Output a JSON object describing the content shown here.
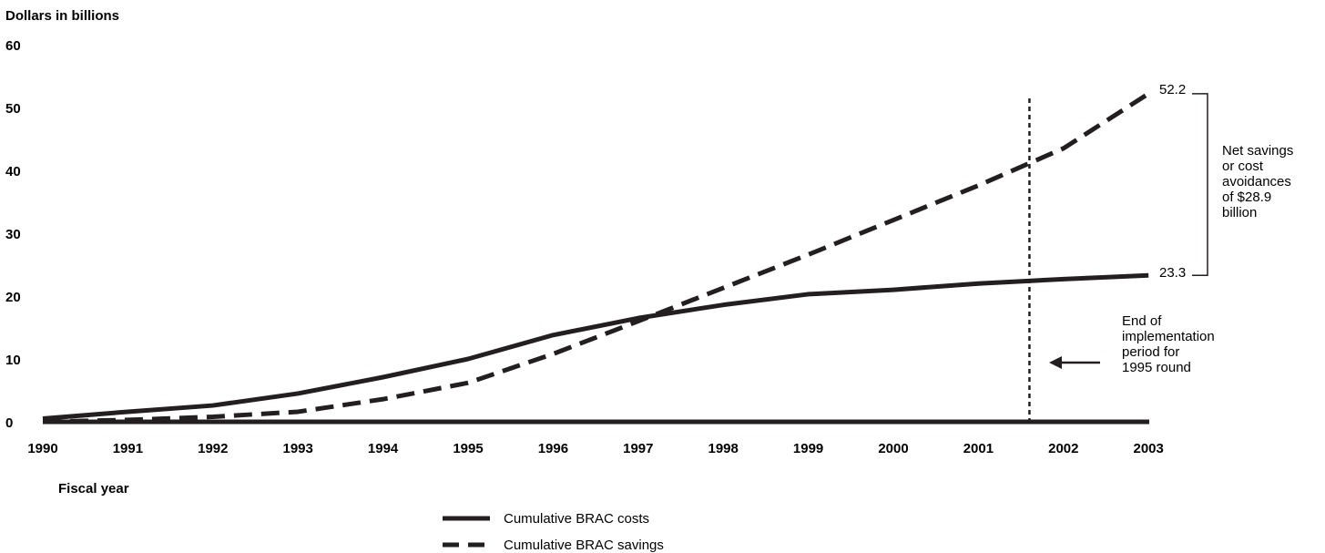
{
  "chart_data": {
    "type": "line",
    "ylabel": "Dollars in billions",
    "xlabel": "Fiscal year",
    "ylim": [
      0,
      60
    ],
    "yticks": [
      "0",
      "10",
      "20",
      "30",
      "40",
      "50",
      "60"
    ],
    "x": [
      "1990",
      "1991",
      "1992",
      "1993",
      "1994",
      "1995",
      "1996",
      "1997",
      "1998",
      "1999",
      "2000",
      "2001",
      "2002",
      "2003"
    ],
    "series": [
      {
        "name": "Cumulative BRAC costs",
        "style": "solid",
        "values": [
          0.5,
          1.6,
          2.6,
          4.5,
          7.1,
          10.0,
          13.8,
          16.5,
          18.6,
          20.3,
          21.0,
          22.0,
          22.7,
          23.3
        ]
      },
      {
        "name": "Cumulative BRAC savings",
        "style": "dashed",
        "values": [
          0.0,
          0.3,
          0.8,
          1.6,
          3.6,
          6.2,
          10.8,
          16.0,
          21.3,
          26.6,
          32.1,
          37.6,
          43.5,
          52.2
        ]
      }
    ],
    "end_labels": {
      "costs": "23.3",
      "savings": "52.2"
    },
    "bracket_note": [
      "Net savings",
      "or cost",
      "avoidances",
      "of $28.9",
      "billion"
    ],
    "vertical_marker": {
      "x": 2001.6,
      "note": [
        "End of",
        "implementation",
        "period for",
        "1995 round"
      ]
    },
    "legend_position": "bottom-center",
    "grid": false,
    "colors": {
      "line": "#231f20"
    }
  }
}
